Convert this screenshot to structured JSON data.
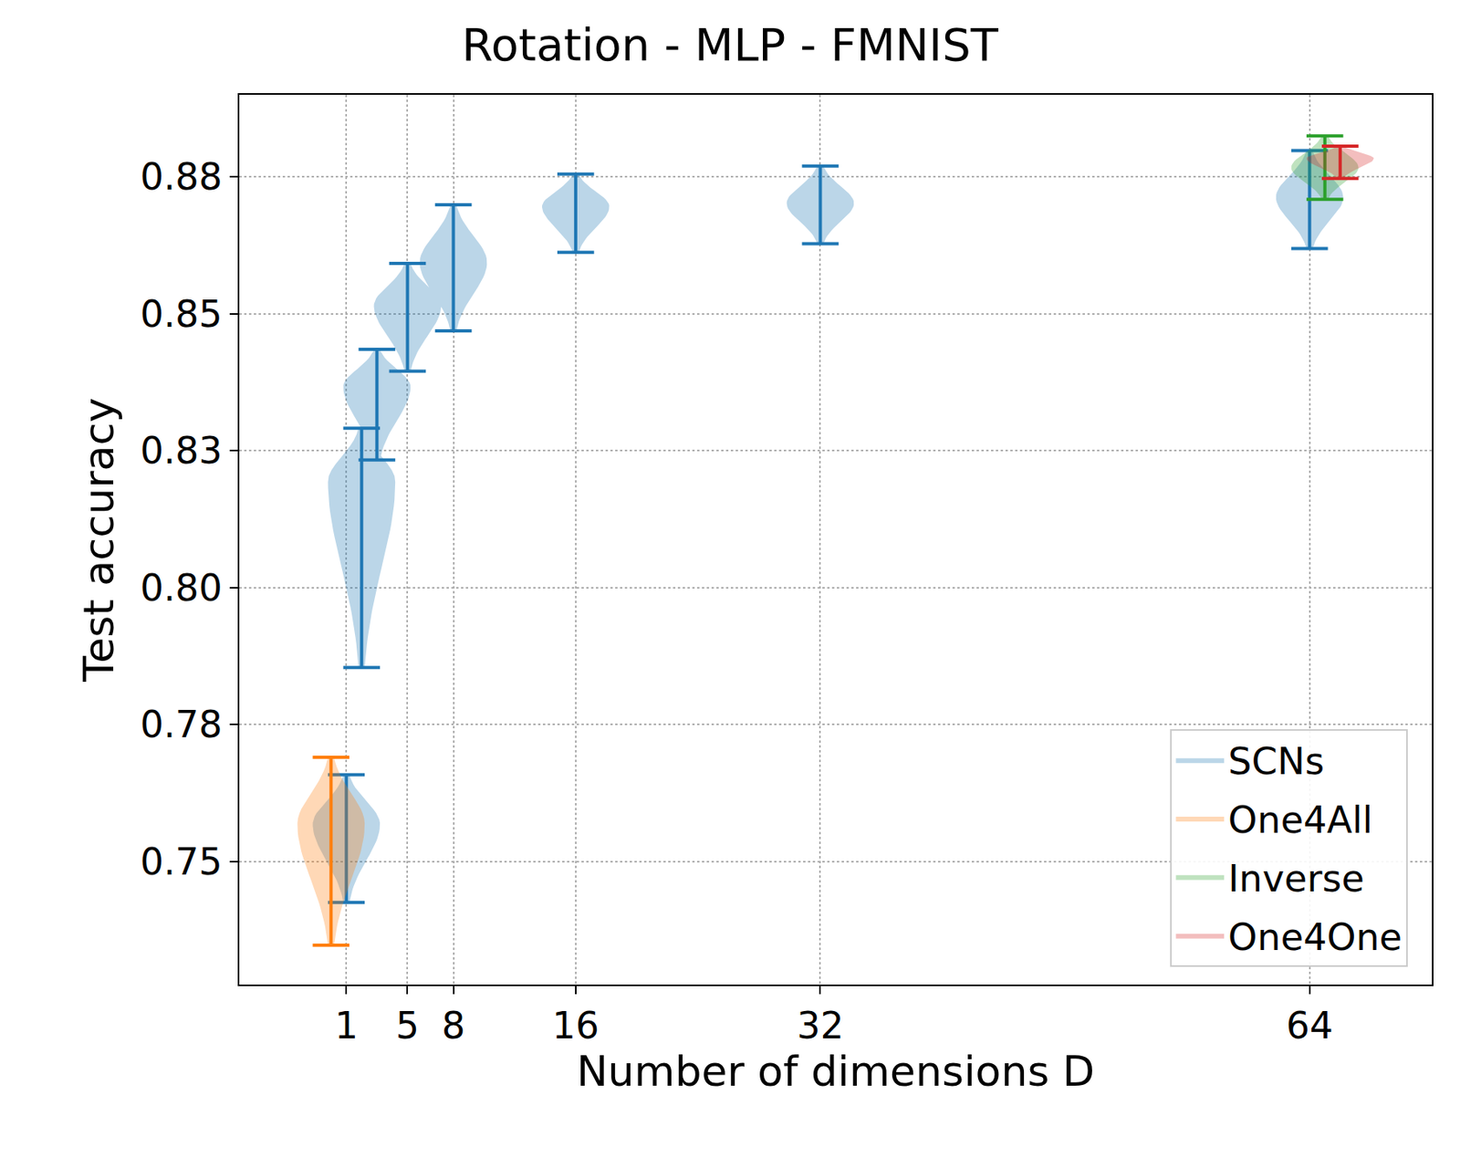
{
  "chart_data": {
    "type": "violin",
    "title": "Rotation - MLP - FMNIST",
    "x_label": "Number of dimensions D",
    "y_label": "Test accuracy",
    "xlim": [
      -6,
      72
    ],
    "xticks": [
      1,
      5,
      8,
      16,
      32,
      64
    ],
    "ylim": [
      0.7275,
      0.89
    ],
    "yticks": [
      {
        "value": 0.75,
        "label": "0.75"
      },
      {
        "value": 0.775,
        "label": "0.78"
      },
      {
        "value": 0.8,
        "label": "0.80"
      },
      {
        "value": 0.825,
        "label": "0.83"
      },
      {
        "value": 0.85,
        "label": "0.85"
      },
      {
        "value": 0.875,
        "label": "0.88"
      }
    ],
    "grid": true,
    "legend": "lower right",
    "series": [
      {
        "name": "SCNs",
        "color": "#1f77b4",
        "x": [
          1,
          2,
          3,
          5,
          8,
          16,
          32,
          64
        ],
        "min": [
          0.7425,
          0.7854,
          0.8233,
          0.8395,
          0.8469,
          0.8612,
          0.8628,
          0.8619
        ],
        "mode": [
          0.7568,
          0.8194,
          0.8367,
          0.8515,
          0.8594,
          0.8696,
          0.8702,
          0.8713
        ],
        "max": [
          0.7658,
          0.8291,
          0.8435,
          0.8592,
          0.8699,
          0.8755,
          0.877,
          0.8798
        ]
      },
      {
        "name": "One4All",
        "color": "#ff7f0e",
        "x": [
          0
        ],
        "min": [
          0.7347
        ],
        "mode": [
          0.7568
        ],
        "max": [
          0.769
        ]
      },
      {
        "name": "Inverse",
        "color": "#2ca02c",
        "x": [
          65
        ],
        "min": [
          0.8709
        ],
        "mode": [
          0.8767
        ],
        "max": [
          0.8825
        ]
      },
      {
        "name": "One4One",
        "color": "#d62728",
        "x": [
          66
        ],
        "min": [
          0.8747
        ],
        "mode": [
          0.8784
        ],
        "max": [
          0.8806
        ]
      }
    ]
  }
}
